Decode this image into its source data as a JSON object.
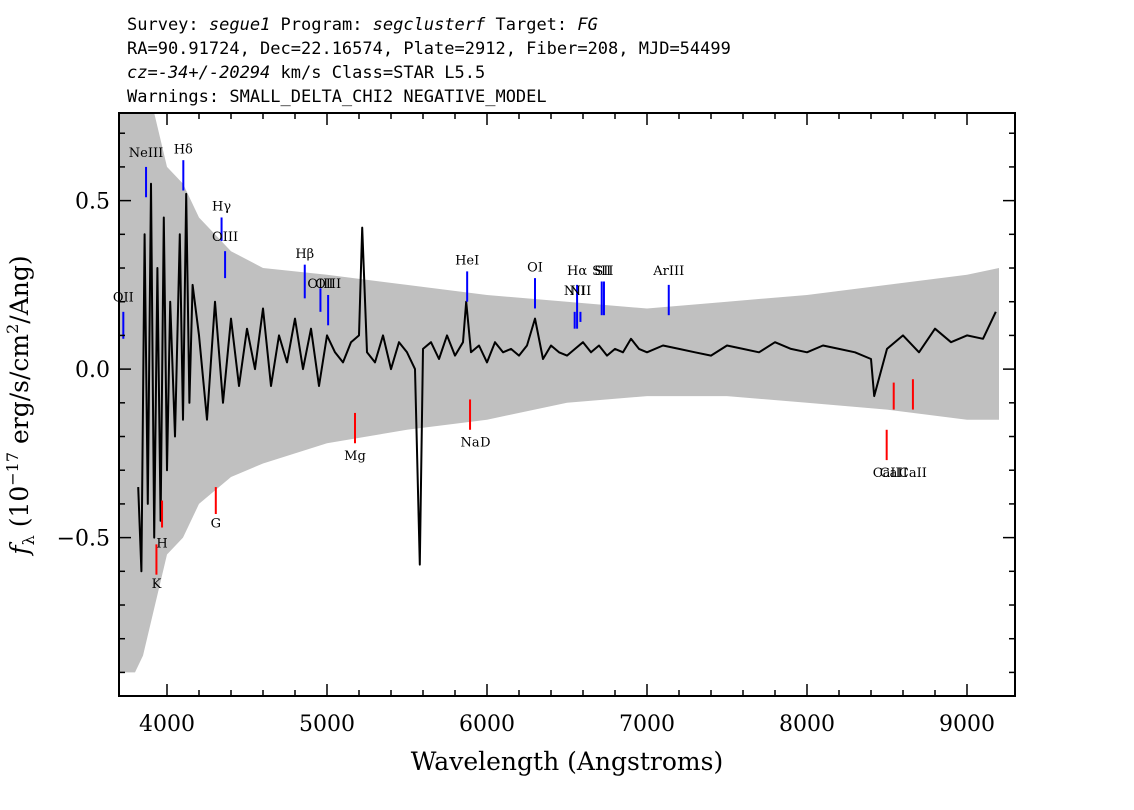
{
  "header": {
    "line1": {
      "survey_label": "Survey: ",
      "survey": "segue1",
      "program_label": " Program: ",
      "program": "segclusterf",
      "target_label": " Target: ",
      "target": "FG"
    },
    "line2": "RA=90.91724, Dec=22.16574, Plate=2912, Fiber=208, MJD=54499",
    "line3": {
      "cz": "cz=-34+/-20294",
      "rest": " km/s Class=STAR L5.5"
    },
    "line4": "Warnings: SMALL_DELTA_CHI2 NEGATIVE_MODEL"
  },
  "chart_data": {
    "type": "line",
    "xlabel": "Wavelength (Angstroms)",
    "ylabel": "f_λ (10^-17 erg/s/cm²/Ang)",
    "xlim": [
      3700,
      9300
    ],
    "ylim": [
      -0.97,
      0.76
    ],
    "x_ticks": [
      4000,
      5000,
      6000,
      7000,
      8000,
      9000
    ],
    "x_tick_labels": [
      "4000",
      "5000",
      "6000",
      "7000",
      "8000",
      "9000"
    ],
    "y_ticks": [
      -0.5,
      0.0,
      0.5
    ],
    "y_tick_labels": [
      "−0.5",
      "0.0",
      "0.5"
    ],
    "colors": {
      "flux": "#000000",
      "error": "#c0c0c0",
      "emission": "#0000ff",
      "absorption": "#ff0000"
    },
    "series": [
      {
        "role": "flux",
        "x": [
          3820,
          3840,
          3860,
          3880,
          3900,
          3920,
          3940,
          3960,
          3980,
          4000,
          4020,
          4050,
          4080,
          4100,
          4120,
          4140,
          4160,
          4200,
          4250,
          4300,
          4350,
          4400,
          4450,
          4500,
          4550,
          4600,
          4650,
          4700,
          4750,
          4800,
          4850,
          4900,
          4950,
          5000,
          5050,
          5100,
          5150,
          5200,
          5220,
          5250,
          5300,
          5350,
          5400,
          5450,
          5500,
          5550,
          5580,
          5600,
          5650,
          5700,
          5750,
          5800,
          5850,
          5870,
          5900,
          5950,
          6000,
          6050,
          6100,
          6150,
          6200,
          6250,
          6300,
          6350,
          6400,
          6450,
          6500,
          6550,
          6600,
          6650,
          6700,
          6750,
          6800,
          6850,
          6900,
          6950,
          7000,
          7100,
          7200,
          7300,
          7400,
          7500,
          7600,
          7700,
          7800,
          7900,
          8000,
          8100,
          8200,
          8300,
          8400,
          8420,
          8500,
          8600,
          8700,
          8800,
          8900,
          9000,
          9100,
          9180
        ],
        "y": [
          -0.35,
          -0.6,
          0.4,
          -0.4,
          0.55,
          -0.5,
          0.3,
          -0.45,
          0.45,
          -0.3,
          0.2,
          -0.2,
          0.4,
          -0.15,
          0.52,
          -0.1,
          0.25,
          0.1,
          -0.15,
          0.2,
          -0.1,
          0.15,
          -0.05,
          0.12,
          0.0,
          0.18,
          -0.05,
          0.1,
          0.02,
          0.15,
          0.0,
          0.12,
          -0.05,
          0.1,
          0.05,
          0.02,
          0.08,
          0.1,
          0.42,
          0.05,
          0.02,
          0.1,
          0.0,
          0.08,
          0.05,
          0.0,
          -0.58,
          0.06,
          0.08,
          0.03,
          0.1,
          0.04,
          0.08,
          0.2,
          0.05,
          0.07,
          0.02,
          0.08,
          0.05,
          0.06,
          0.04,
          0.07,
          0.15,
          0.03,
          0.07,
          0.05,
          0.04,
          0.06,
          0.08,
          0.05,
          0.07,
          0.04,
          0.06,
          0.05,
          0.09,
          0.06,
          0.05,
          0.07,
          0.06,
          0.05,
          0.04,
          0.07,
          0.06,
          0.05,
          0.08,
          0.06,
          0.05,
          0.07,
          0.06,
          0.05,
          0.03,
          -0.08,
          0.06,
          0.1,
          0.05,
          0.12,
          0.08,
          0.1,
          0.09,
          0.17
        ]
      },
      {
        "role": "error",
        "x": [
          3700,
          3800,
          3850,
          3900,
          4000,
          4100,
          4200,
          4400,
          4600,
          5000,
          5500,
          6000,
          6500,
          7000,
          7500,
          8000,
          8500,
          9000,
          9200
        ],
        "upper": [
          0.9,
          0.9,
          0.85,
          0.8,
          0.6,
          0.55,
          0.45,
          0.35,
          0.3,
          0.28,
          0.25,
          0.22,
          0.2,
          0.18,
          0.2,
          0.22,
          0.25,
          0.28,
          0.3
        ],
        "lower": [
          -0.9,
          -0.9,
          -0.85,
          -0.75,
          -0.55,
          -0.5,
          -0.4,
          -0.32,
          -0.28,
          -0.22,
          -0.18,
          -0.15,
          -0.1,
          -0.08,
          -0.08,
          -0.1,
          -0.12,
          -0.15,
          -0.15
        ]
      }
    ],
    "emission_lines": [
      {
        "label": "OII",
        "x": 3727,
        "y_text": 0.2,
        "y0": 0.09,
        "y1": 0.17
      },
      {
        "label": "NeIII",
        "x": 3869,
        "y_text": 0.63,
        "y0": 0.51,
        "y1": 0.6
      },
      {
        "label": "Hδ",
        "x": 4102,
        "y_text": 0.64,
        "y0": 0.53,
        "y1": 0.62
      },
      {
        "label": "Hγ",
        "x": 4341,
        "y_text": 0.47,
        "y0": 0.38,
        "y1": 0.45
      },
      {
        "label": "OIII",
        "x": 4363,
        "y_text": 0.38,
        "y0": 0.27,
        "y1": 0.35
      },
      {
        "label": "Hβ",
        "x": 4861,
        "y_text": 0.33,
        "y0": 0.21,
        "y1": 0.31
      },
      {
        "label": "OIII",
        "x": 4959,
        "y_text": 0.24,
        "y0": 0.17,
        "y1": 0.24
      },
      {
        "label": "OIII",
        "x": 5007,
        "y_text": 0.24,
        "y0": 0.13,
        "y1": 0.22
      },
      {
        "label": "HeI",
        "x": 5876,
        "y_text": 0.31,
        "y0": 0.2,
        "y1": 0.29
      },
      {
        "label": "OI",
        "x": 6300,
        "y_text": 0.29,
        "y0": 0.18,
        "y1": 0.27
      },
      {
        "label": "NII",
        "x": 6548,
        "y_text": 0.22,
        "y0": 0.12,
        "y1": 0.17
      },
      {
        "label": "Hα",
        "x": 6563,
        "y_text": 0.28,
        "y0": 0.12,
        "y1": 0.25
      },
      {
        "label": "NII",
        "x": 6584,
        "y_text": 0.22,
        "y0": 0.14,
        "y1": 0.17
      },
      {
        "label": "SII",
        "x": 6717,
        "y_text": 0.28,
        "y0": 0.16,
        "y1": 0.26
      },
      {
        "label": "SII",
        "x": 6731,
        "y_text": 0.28,
        "y0": 0.16,
        "y1": 0.26
      },
      {
        "label": "ArIII",
        "x": 7136,
        "y_text": 0.28,
        "y0": 0.16,
        "y1": 0.25
      }
    ],
    "absorption_lines": [
      {
        "label": "K",
        "x": 3934,
        "y_text": -0.65,
        "y0": -0.61,
        "y1": -0.52
      },
      {
        "label": "H",
        "x": 3969,
        "y_text": -0.53,
        "y0": -0.47,
        "y1": -0.39
      },
      {
        "label": "G",
        "x": 4305,
        "y_text": -0.47,
        "y0": -0.43,
        "y1": -0.35
      },
      {
        "label": "Mg",
        "x": 5175,
        "y_text": -0.27,
        "y0": -0.22,
        "y1": -0.13
      },
      {
        "label": "Na",
        "x": 5894,
        "y_text": -0.23,
        "y0": -0.18,
        "y1": -0.09
      },
      {
        "label": "CaII",
        "x": 8498,
        "y_text": -0.32,
        "y0": -0.27,
        "y1": -0.18
      },
      {
        "label": "CaII",
        "x": 8542,
        "y_text": -0.32,
        "y0": -0.12,
        "y1": -0.04
      },
      {
        "label": "CaII",
        "x": 8662,
        "y_text": -0.32,
        "y0": -0.12,
        "y1": -0.03
      }
    ],
    "absorption_extra_labels": [
      {
        "label": "D",
        "x": 5990,
        "y_text": -0.23
      }
    ]
  }
}
